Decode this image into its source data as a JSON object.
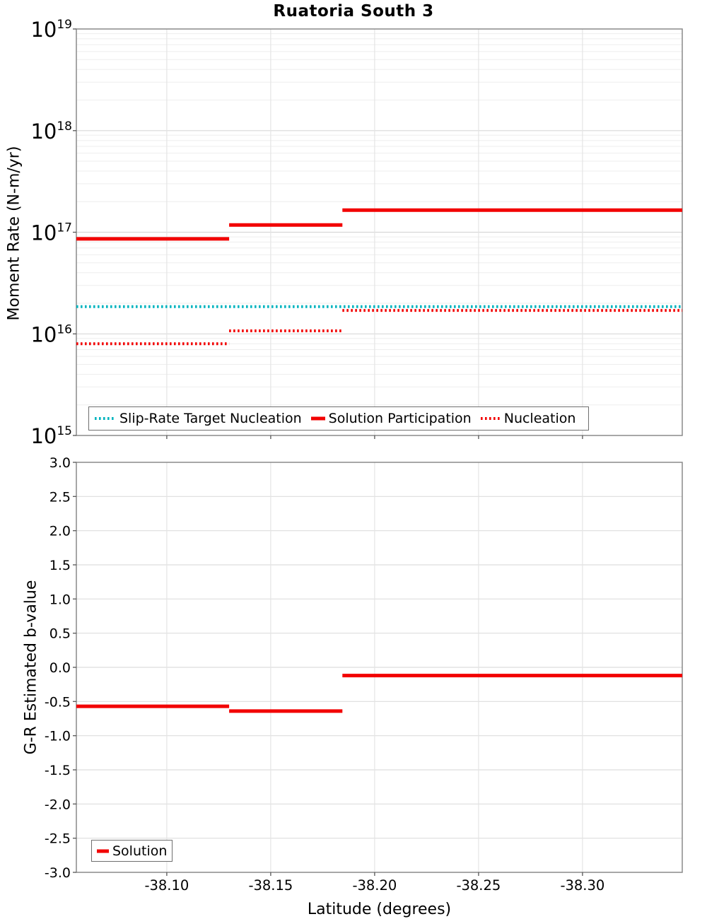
{
  "title": "Ruatoria South 3",
  "chart_data": [
    {
      "name": "moment-rate-vs-latitude",
      "type": "line",
      "subtype": "step-segments",
      "ylabel": "Moment Rate (N-m/yr)",
      "yscale": "log",
      "ylim": [
        1000000000000000.0,
        1e+19
      ],
      "ylim_exponents": [
        15,
        19
      ],
      "ytick_exponents": [
        19,
        18,
        17,
        16,
        15
      ],
      "xlim": [
        -38.0565,
        -38.348
      ],
      "xticks": [
        -38.1,
        -38.15,
        -38.2,
        -38.25,
        -38.3
      ],
      "grid": "major+log-minor, vertical at xticks",
      "legend_position": "bottom-left-inside",
      "series": [
        {
          "name": "Slip-Rate Target Nucleation",
          "style": "dotted",
          "color": "#00b4bf",
          "width": 4,
          "segments": [
            {
              "x0": -38.0565,
              "x1": -38.348,
              "y": 1.85e+16
            }
          ]
        },
        {
          "name": "Solution Participation",
          "style": "solid",
          "color": "#f20000",
          "width": 5,
          "segments": [
            {
              "x0": -38.0565,
              "x1": -38.13,
              "y": 8.6e+16
            },
            {
              "x0": -38.13,
              "x1": -38.1845,
              "y": 1.18e+17
            },
            {
              "x0": -38.1845,
              "x1": -38.348,
              "y": 1.65e+17
            }
          ]
        },
        {
          "name": "Nucleation",
          "style": "dotted",
          "color": "#f20000",
          "width": 4,
          "segments": [
            {
              "x0": -38.0565,
              "x1": -38.13,
              "y": 8000000000000000.0
            },
            {
              "x0": -38.13,
              "x1": -38.1845,
              "y": 1.07e+16
            },
            {
              "x0": -38.1845,
              "x1": -38.348,
              "y": 1.7e+16
            }
          ]
        }
      ]
    },
    {
      "name": "b-value-vs-latitude",
      "type": "line",
      "subtype": "step-segments",
      "ylabel": "G-R Estimated b-value",
      "xlabel": "Latitude (degrees)",
      "yscale": "linear",
      "ylim": [
        -3.0,
        3.0
      ],
      "yticks": [
        3.0,
        2.5,
        2.0,
        1.5,
        1.0,
        0.5,
        0.0,
        -0.5,
        -1.0,
        -1.5,
        -2.0,
        -2.5,
        -3.0
      ],
      "ytick_labels": [
        "3.0",
        "2.5",
        "2.0",
        "1.5",
        "1.0",
        "0.5",
        "0.0",
        "-0.5",
        "-1.0",
        "-1.5",
        "-2.0",
        "-2.5",
        "-3.0"
      ],
      "xlim": [
        -38.0565,
        -38.348
      ],
      "xticks": [
        -38.1,
        -38.15,
        -38.2,
        -38.25,
        -38.3
      ],
      "xtick_labels": [
        "-38.10",
        "-38.15",
        "-38.20",
        "-38.25",
        "-38.30"
      ],
      "grid": "major horizontal + vertical at xticks",
      "legend_position": "bottom-left-inside",
      "series": [
        {
          "name": "Solution",
          "style": "solid",
          "color": "#f20000",
          "width": 5,
          "segments": [
            {
              "x0": -38.0565,
              "x1": -38.13,
              "y": -0.57
            },
            {
              "x0": -38.13,
              "x1": -38.1845,
              "y": -0.64
            },
            {
              "x0": -38.1845,
              "x1": -38.348,
              "y": -0.12
            }
          ]
        }
      ]
    }
  ]
}
